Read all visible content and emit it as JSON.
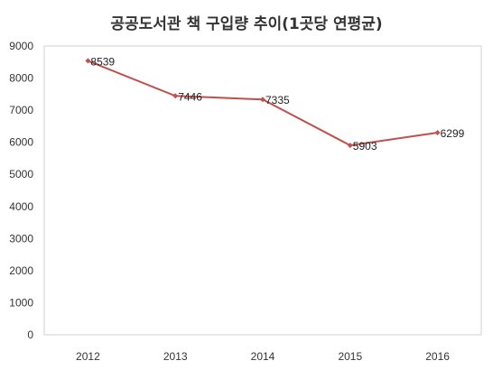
{
  "chart_data": {
    "type": "line",
    "title": "공공도서관 책 구입량 추이(1곳당 연평균)",
    "xlabel": "",
    "ylabel": "",
    "categories": [
      "2012",
      "2013",
      "2014",
      "2015",
      "2016"
    ],
    "series": [
      {
        "values": [
          8539,
          7446,
          7335,
          5903,
          6299
        ],
        "color": "#c0504d"
      }
    ],
    "ylim": [
      0,
      9000
    ],
    "yticks": [
      0,
      1000,
      2000,
      3000,
      4000,
      5000,
      6000,
      7000,
      8000,
      9000
    ],
    "grid": false,
    "legend": "none",
    "data_labels": true
  }
}
